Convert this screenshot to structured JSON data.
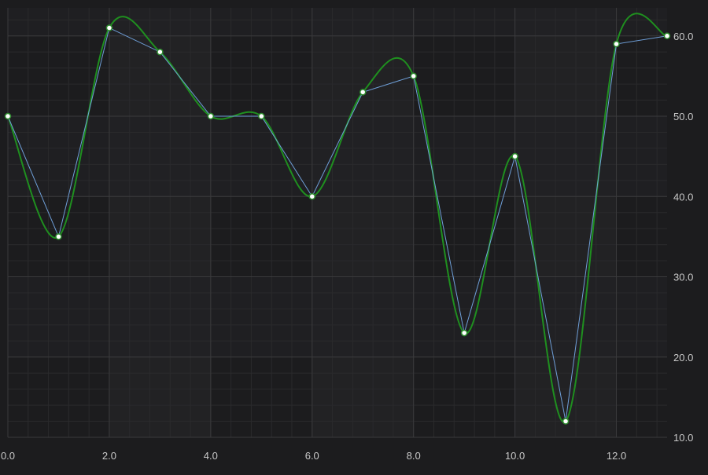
{
  "chart_data": {
    "type": "line",
    "x": [
      0,
      1,
      2,
      3,
      4,
      5,
      6,
      7,
      8,
      9,
      10,
      11,
      12,
      13
    ],
    "series": [
      {
        "values": [
          50,
          35,
          61,
          58,
          50,
          50,
          40,
          53,
          55,
          23,
          45,
          12,
          59,
          60
        ],
        "line_color": "#6f9fd8",
        "spline_color": "#1f8f1f",
        "marker_fill": "#ffffff",
        "marker_stroke": "#2e8b2e"
      }
    ],
    "xlim": [
      0,
      13
    ],
    "ylim": [
      10,
      63.5
    ],
    "x_ticks": [
      0,
      2,
      4,
      6,
      8,
      10,
      12
    ],
    "x_tick_labels": [
      "0.0",
      "2.0",
      "4.0",
      "6.0",
      "8.0",
      "10.0",
      "12.0"
    ],
    "y_ticks": [
      10,
      20,
      30,
      40,
      50,
      60
    ],
    "y_tick_labels": [
      "10.0",
      "20.0",
      "30.0",
      "40.0",
      "50.0",
      "60.0"
    ],
    "y_axis_side": "right",
    "grid": true,
    "background": "#1c1c1e",
    "band_color": "#222224",
    "grid_color": "#3a3a3c",
    "minor_grid_color": "#2a2a2c",
    "title": "",
    "xlabel": "",
    "ylabel": ""
  }
}
